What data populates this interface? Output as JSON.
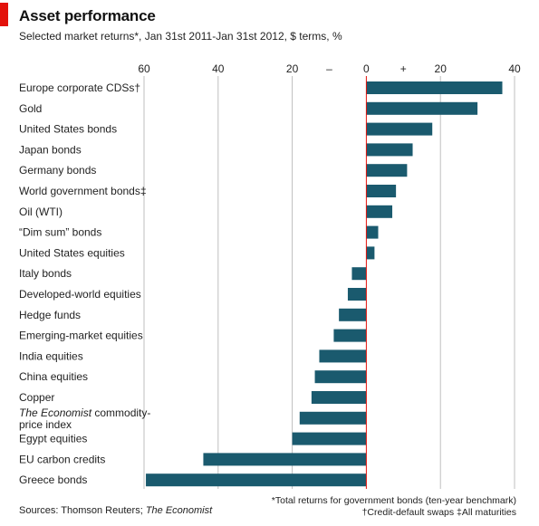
{
  "header": {
    "title": "Asset performance",
    "subtitle": "Selected market returns*, Jan 31st 2011-Jan 31st 2012, $ terms, %"
  },
  "footer": {
    "source": "Sources: Thomson Reuters; The Economist",
    "note1": "*Total returns for government bonds (ten-year benchmark)",
    "note2": "†Credit-default swaps   ‡All maturities"
  },
  "colors": {
    "bar": "#1a5a6e",
    "zero_line": "#e3120b",
    "accent": "#e3120b",
    "grid": "#bfbfbf"
  },
  "chart_data": {
    "type": "bar",
    "orientation": "horizontal",
    "title": "Asset performance",
    "subtitle": "Selected market returns*, Jan 31st 2011-Jan 31st 2012, $ terms, %",
    "xlim": [
      -60,
      40
    ],
    "x_ticks": [
      {
        "value": -60,
        "label": "60"
      },
      {
        "value": -40,
        "label": "40"
      },
      {
        "value": -20,
        "label": "20"
      },
      {
        "value": -10,
        "label": "–"
      },
      {
        "value": 0,
        "label": "0"
      },
      {
        "value": 10,
        "label": "+"
      },
      {
        "value": 20,
        "label": "20"
      },
      {
        "value": 40,
        "label": "40"
      }
    ],
    "grid": true,
    "categories": [
      "Europe corporate CDSs†",
      "Gold",
      "United States bonds",
      "Japan bonds",
      "Germany bonds",
      "World government bonds‡",
      "Oil (WTI)",
      "“Dim sum” bonds",
      "United States equities",
      "Italy bonds",
      "Developed-world equities",
      "Hedge funds",
      "Emerging-market equities",
      "India equities",
      "China equities",
      "Copper",
      "The Economist commodity-price index",
      "Egypt equities",
      "EU carbon credits",
      "Greece bonds"
    ],
    "values": [
      36.7,
      30,
      17.8,
      12.5,
      11,
      8,
      7,
      3.2,
      2.2,
      -3.9,
      -5,
      -7.4,
      -8.8,
      -12.7,
      -13.9,
      -14.8,
      -18,
      -20,
      -44,
      -59.5
    ]
  }
}
